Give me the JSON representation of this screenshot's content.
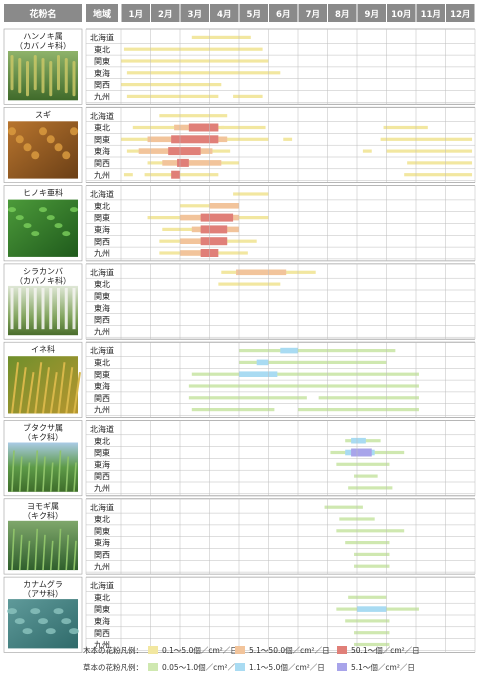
{
  "chart_data": {
    "type": "table",
    "header": {
      "plant": "花粉名",
      "region": "地域"
    },
    "months": [
      "1月",
      "2月",
      "3月",
      "4月",
      "5月",
      "6月",
      "7月",
      "8月",
      "9月",
      "10月",
      "11月",
      "12月"
    ],
    "regions": [
      "北海道",
      "東北",
      "関東",
      "東海",
      "関西",
      "九州"
    ],
    "colors": {
      "header_bg": "#8a8a8a",
      "grid": "#bdbdbd",
      "wood_low": "#f2e7a0",
      "wood_mid": "#f2c49b",
      "wood_high": "#e07f78",
      "herb_low": "#cfe8b0",
      "herb_mid": "#a9dbf2",
      "herb_high": "#a8a4ea"
    },
    "legend": [
      {
        "title": "木本の花粉凡例：",
        "items": [
          {
            "label": "0.1～5.0個／cm²／日",
            "color": "#f2e7a0"
          },
          {
            "label": "5.1～50.0個／cm²／日",
            "color": "#f2c49b"
          },
          {
            "label": "50.1～個／cm²／日",
            "color": "#e07f78"
          }
        ]
      },
      {
        "title": "草本の花粉凡例：",
        "items": [
          {
            "label": "0.05～1.0個／cm²／日",
            "color": "#cfe8b0"
          },
          {
            "label": "1.1～5.0個／cm²／日",
            "color": "#a9dbf2"
          },
          {
            "label": "5.1～個／cm²／日",
            "color": "#a8a4ea"
          }
        ]
      }
    ],
    "plants": [
      {
        "name": "ハンノキ属\n（カバノキ科）",
        "kind": "wood",
        "photo": "alder-catkins",
        "bars": [
          {
            "region": 0,
            "level": 1,
            "from": 3.4,
            "to": 5.4
          },
          {
            "region": 1,
            "level": 1,
            "from": 1.1,
            "to": 5.8
          },
          {
            "region": 2,
            "level": 1,
            "from": 1.0,
            "to": 6.0
          },
          {
            "region": 3,
            "level": 1,
            "from": 1.2,
            "to": 6.4
          },
          {
            "region": 4,
            "level": 1,
            "from": 1.0,
            "to": 4.4
          },
          {
            "region": 5,
            "level": 1,
            "from": 1.2,
            "to": 4.3
          },
          {
            "region": 5,
            "level": 1,
            "from": 4.8,
            "to": 5.8
          }
        ]
      },
      {
        "name": "スギ",
        "kind": "wood",
        "photo": "cedar",
        "bars": [
          {
            "region": 0,
            "level": 1,
            "from": 2.3,
            "to": 4.6
          },
          {
            "region": 1,
            "level": 1,
            "from": 1.4,
            "to": 4.5
          },
          {
            "region": 1,
            "level": 2,
            "from": 2.8,
            "to": 4.3
          },
          {
            "region": 1,
            "level": 3,
            "from": 3.3,
            "to": 4.3
          },
          {
            "region": 1,
            "level": 1,
            "from": 4.4,
            "to": 5.9
          },
          {
            "region": 1,
            "level": 1,
            "from": 9.9,
            "to": 11.4
          },
          {
            "region": 2,
            "level": 1,
            "from": 1.0,
            "to": 6.0
          },
          {
            "region": 2,
            "level": 2,
            "from": 1.9,
            "to": 4.6
          },
          {
            "region": 2,
            "level": 3,
            "from": 2.7,
            "to": 4.3
          },
          {
            "region": 2,
            "level": 1,
            "from": 6.5,
            "to": 6.8
          },
          {
            "region": 2,
            "level": 1,
            "from": 9.8,
            "to": 12.9
          },
          {
            "region": 3,
            "level": 1,
            "from": 1.2,
            "to": 4.7
          },
          {
            "region": 3,
            "level": 2,
            "from": 1.6,
            "to": 4.1
          },
          {
            "region": 3,
            "level": 3,
            "from": 2.6,
            "to": 3.7
          },
          {
            "region": 3,
            "level": 1,
            "from": 9.2,
            "to": 9.5
          },
          {
            "region": 3,
            "level": 1,
            "from": 10.0,
            "to": 12.9
          },
          {
            "region": 4,
            "level": 1,
            "from": 1.9,
            "to": 5.0
          },
          {
            "region": 4,
            "level": 2,
            "from": 2.4,
            "to": 4.4
          },
          {
            "region": 4,
            "level": 3,
            "from": 2.9,
            "to": 3.3
          },
          {
            "region": 4,
            "level": 1,
            "from": 10.7,
            "to": 12.9
          },
          {
            "region": 5,
            "level": 1,
            "from": 1.1,
            "to": 1.4
          },
          {
            "region": 5,
            "level": 1,
            "from": 1.8,
            "to": 4.3
          },
          {
            "region": 5,
            "level": 3,
            "from": 2.7,
            "to": 3.0
          },
          {
            "region": 5,
            "level": 1,
            "from": 10.6,
            "to": 12.9
          }
        ]
      },
      {
        "name": "ヒノキ亜科",
        "kind": "wood",
        "photo": "cypress",
        "bars": [
          {
            "region": 0,
            "level": 1,
            "from": 4.8,
            "to": 6.0
          },
          {
            "region": 1,
            "level": 1,
            "from": 3.0,
            "to": 5.0
          },
          {
            "region": 1,
            "level": 2,
            "from": 4.0,
            "to": 5.0
          },
          {
            "region": 2,
            "level": 1,
            "from": 1.9,
            "to": 6.0
          },
          {
            "region": 2,
            "level": 2,
            "from": 3.0,
            "to": 5.0
          },
          {
            "region": 2,
            "level": 3,
            "from": 3.7,
            "to": 4.8
          },
          {
            "region": 3,
            "level": 1,
            "from": 2.4,
            "to": 5.0
          },
          {
            "region": 3,
            "level": 2,
            "from": 3.4,
            "to": 5.0
          },
          {
            "region": 3,
            "level": 3,
            "from": 3.7,
            "to": 4.6
          },
          {
            "region": 4,
            "level": 1,
            "from": 2.3,
            "to": 5.6
          },
          {
            "region": 4,
            "level": 2,
            "from": 3.0,
            "to": 4.6
          },
          {
            "region": 4,
            "level": 3,
            "from": 3.7,
            "to": 4.6
          },
          {
            "region": 5,
            "level": 1,
            "from": 2.3,
            "to": 5.3
          },
          {
            "region": 5,
            "level": 2,
            "from": 3.0,
            "to": 4.1
          },
          {
            "region": 5,
            "level": 3,
            "from": 3.7,
            "to": 4.3
          }
        ]
      },
      {
        "name": "シラカンバ\n（カバノキ科）",
        "kind": "wood",
        "photo": "birch",
        "bars": [
          {
            "region": 0,
            "level": 1,
            "from": 4.4,
            "to": 7.6
          },
          {
            "region": 0,
            "level": 2,
            "from": 4.9,
            "to": 6.6
          },
          {
            "region": 1,
            "level": 1,
            "from": 4.3,
            "to": 6.4
          }
        ]
      },
      {
        "name": "イネ科",
        "kind": "herb",
        "photo": "grass",
        "bars": [
          {
            "region": 0,
            "level": 1,
            "from": 5.0,
            "to": 10.3
          },
          {
            "region": 0,
            "level": 2,
            "from": 6.4,
            "to": 7.0
          },
          {
            "region": 1,
            "level": 1,
            "from": 5.0,
            "to": 10.0
          },
          {
            "region": 1,
            "level": 2,
            "from": 5.6,
            "to": 6.0
          },
          {
            "region": 2,
            "level": 1,
            "from": 3.4,
            "to": 11.1
          },
          {
            "region": 2,
            "level": 2,
            "from": 5.0,
            "to": 6.3
          },
          {
            "region": 3,
            "level": 1,
            "from": 3.3,
            "to": 11.1
          },
          {
            "region": 4,
            "level": 1,
            "from": 3.3,
            "to": 7.3
          },
          {
            "region": 4,
            "level": 1,
            "from": 7.7,
            "to": 11.1
          },
          {
            "region": 5,
            "level": 1,
            "from": 3.4,
            "to": 6.2
          },
          {
            "region": 5,
            "level": 1,
            "from": 7.0,
            "to": 11.1
          }
        ]
      },
      {
        "name": "ブタクサ属\n（キク科）",
        "kind": "herb",
        "photo": "ragweed",
        "bars": [
          {
            "region": 1,
            "level": 1,
            "from": 8.6,
            "to": 9.8
          },
          {
            "region": 1,
            "level": 2,
            "from": 8.8,
            "to": 9.3
          },
          {
            "region": 2,
            "level": 1,
            "from": 8.1,
            "to": 10.6
          },
          {
            "region": 2,
            "level": 2,
            "from": 8.6,
            "to": 9.6
          },
          {
            "region": 2,
            "level": 3,
            "from": 8.8,
            "to": 9.5
          },
          {
            "region": 3,
            "level": 1,
            "from": 8.3,
            "to": 10.1
          },
          {
            "region": 4,
            "level": 1,
            "from": 8.9,
            "to": 9.7
          },
          {
            "region": 5,
            "level": 1,
            "from": 8.7,
            "to": 10.2
          }
        ]
      },
      {
        "name": "ヨモギ属\n（キク科）",
        "kind": "herb",
        "photo": "mugwort",
        "bars": [
          {
            "region": 0,
            "level": 1,
            "from": 7.9,
            "to": 9.2
          },
          {
            "region": 1,
            "level": 1,
            "from": 8.4,
            "to": 9.6
          },
          {
            "region": 2,
            "level": 1,
            "from": 8.3,
            "to": 10.6
          },
          {
            "region": 3,
            "level": 1,
            "from": 8.6,
            "to": 10.1
          },
          {
            "region": 4,
            "level": 1,
            "from": 8.9,
            "to": 10.1
          },
          {
            "region": 5,
            "level": 1,
            "from": 8.9,
            "to": 10.1
          }
        ]
      },
      {
        "name": "カナムグラ\n（アサ科）",
        "kind": "herb",
        "photo": "hop",
        "bars": [
          {
            "region": 1,
            "level": 1,
            "from": 8.7,
            "to": 10.0
          },
          {
            "region": 2,
            "level": 1,
            "from": 8.3,
            "to": 11.1
          },
          {
            "region": 2,
            "level": 2,
            "from": 9.0,
            "to": 10.0
          },
          {
            "region": 3,
            "level": 1,
            "from": 8.6,
            "to": 10.1
          },
          {
            "region": 4,
            "level": 1,
            "from": 8.9,
            "to": 10.1
          },
          {
            "region": 5,
            "level": 1,
            "from": 8.9,
            "to": 10.1
          }
        ]
      }
    ]
  }
}
